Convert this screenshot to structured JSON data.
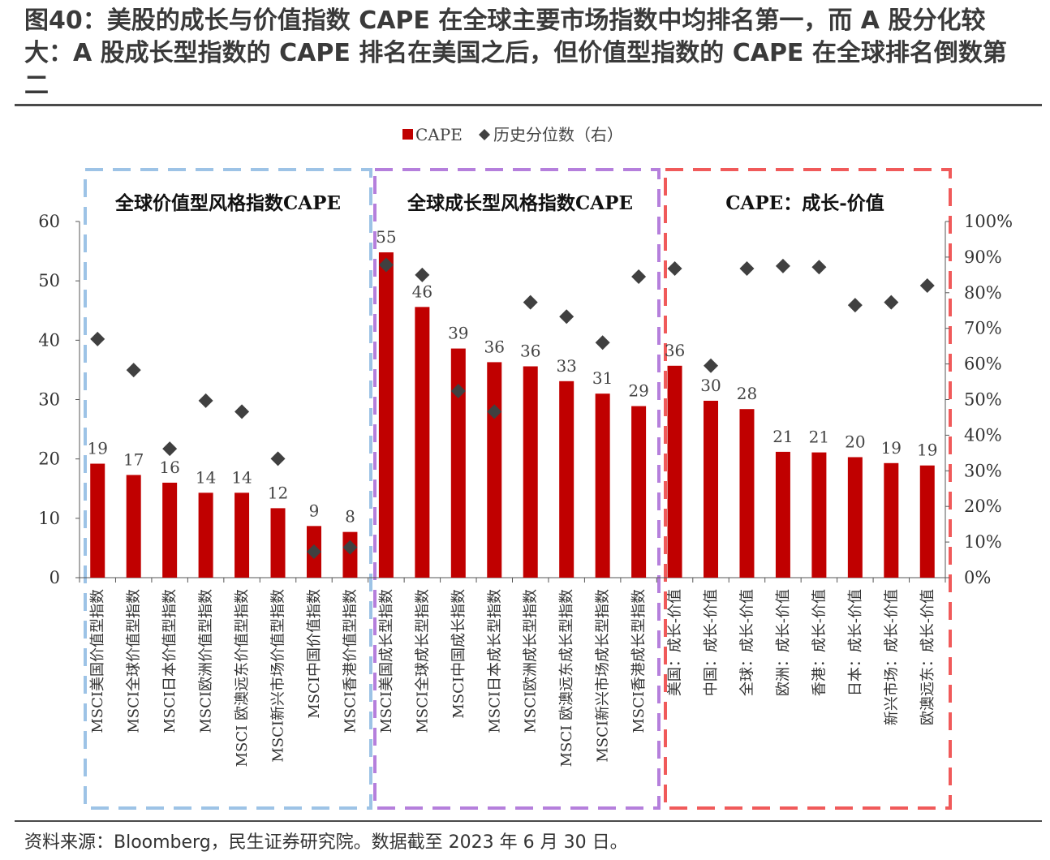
{
  "title": "图40：美股的成长与价值指数 CAPE 在全球主要市场指数中均排名第一，而 A 股分化较大：A 股成长型指数的 CAPE 排名在美国之后，但价值型指数的 CAPE 在全球排名倒数第二",
  "source": "资料来源：Bloomberg，民生证券研究院。数据截至 2023 年 6 月 30 日。",
  "colors": {
    "bar": "#c00000",
    "marker": "#404040",
    "panel_value": "#9dc3e6",
    "panel_growth": "#b57fdc",
    "panel_diff": "#f05a5a"
  },
  "chart_data": {
    "type": "bar",
    "legend": {
      "position": "top-center",
      "entries": [
        "CAPE",
        "历史分位数（右）"
      ]
    },
    "panels": [
      "全球价值型风格指数CAPE",
      "全球成长型风格指数CAPE",
      "CAPE：成长-价值"
    ],
    "categories": [
      "MSCI美国价值型指数",
      "MSCI全球价值型指数",
      "MSCI日本价值型指数",
      "MSCI欧洲价值型指数",
      "MSCI 欧澳远东价值型指数",
      "MSCI新兴市场价值型指数",
      "MSCI中国价值指数",
      "MSCI香港价值型指数",
      "MSCI美国成长型指数",
      "MSCI全球成长型指数",
      "MSCI中国成长指数",
      "MSCI日本成长型指数",
      "MSCI欧洲成长型指数",
      "MSCI 欧澳远东成长型指数",
      "MSCI新兴市场成长型指数",
      "MSCI香港成长型指数",
      "美国：成长-价值",
      "中国：成长-价值",
      "全球：成长-价值",
      "欧洲：成长-价值",
      "香港：成长-价值",
      "日本：成长-价值",
      "新兴市场：成长-价值",
      "欧澳远东：成长-价值"
    ],
    "panel_sizes": [
      8,
      8,
      8
    ],
    "series": [
      {
        "name": "CAPE",
        "axis": "left",
        "type": "bar",
        "values": [
          19.2,
          17.3,
          16.0,
          14.3,
          14.3,
          11.7,
          8.7,
          7.7,
          54.8,
          45.6,
          38.6,
          36.3,
          35.6,
          33.1,
          31.0,
          28.9,
          35.7,
          29.8,
          28.4,
          21.2,
          21.1,
          20.3,
          19.3,
          18.9
        ],
        "labels": [
          "19",
          "17",
          "16",
          "14",
          "14",
          "12",
          "9",
          "8",
          "55",
          "46",
          "39",
          "36",
          "36",
          "33",
          "31",
          "29",
          "36",
          "30",
          "28",
          "21",
          "21",
          "20",
          "19",
          "19"
        ]
      },
      {
        "name": "历史分位数（右）",
        "axis": "right",
        "type": "scatter",
        "values": [
          0.67,
          0.583,
          0.362,
          0.497,
          0.466,
          0.334,
          0.073,
          0.085,
          0.878,
          0.85,
          0.524,
          0.466,
          0.773,
          0.733,
          0.66,
          0.845,
          0.868,
          0.595,
          0.868,
          0.875,
          0.872,
          0.765,
          0.773,
          0.82
        ]
      }
    ],
    "y_left": {
      "min": 0,
      "max": 60,
      "ticks": [
        "0",
        "10",
        "20",
        "30",
        "40",
        "50",
        "60"
      ]
    },
    "y_right": {
      "min": 0,
      "max": 1,
      "ticks": [
        "0%",
        "10%",
        "20%",
        "30%",
        "40%",
        "50%",
        "60%",
        "70%",
        "80%",
        "90%",
        "100%"
      ]
    },
    "grid": false
  }
}
